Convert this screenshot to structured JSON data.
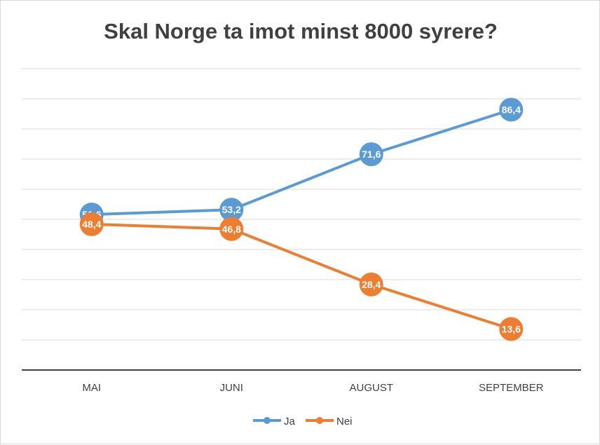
{
  "chart_data": {
    "type": "line",
    "title": "Skal Norge ta imot minst 8000 syrere?",
    "categories": [
      "MAI",
      "JUNI",
      "AUGUST",
      "SEPTEMBER"
    ],
    "series": [
      {
        "name": "Ja",
        "values": [
          51.6,
          53.2,
          71.6,
          86.4
        ],
        "labels": [
          "51,6",
          "53,2",
          "71,6",
          "86,4"
        ],
        "color": "#5b9bd5"
      },
      {
        "name": "Nei",
        "values": [
          48.4,
          46.8,
          28.4,
          13.6
        ],
        "labels": [
          "48,4",
          "46,8",
          "28,4",
          "13,6"
        ],
        "color": "#ed7d31"
      }
    ],
    "ylim": [
      0,
      100
    ],
    "grid": true,
    "legend": "bottom",
    "xlabel": "",
    "ylabel": ""
  }
}
